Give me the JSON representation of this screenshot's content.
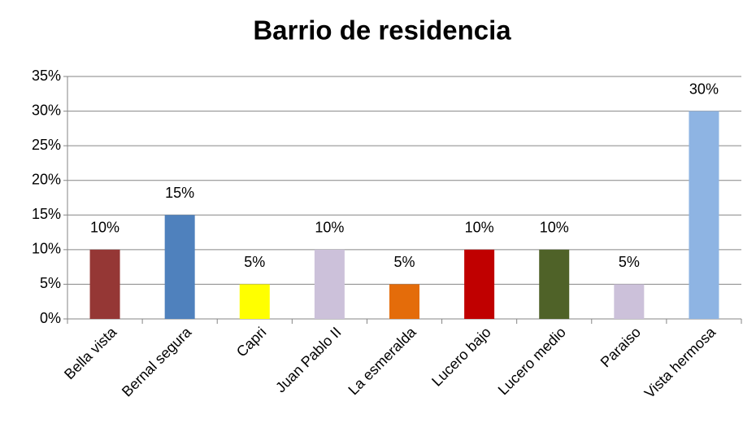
{
  "chart_data": {
    "type": "bar",
    "title": "Barrio de residencia",
    "categories": [
      "Bella vista",
      "Bernal segura",
      "Capri",
      "Juan Pablo II",
      "La esmeralda",
      "Lucero bajo",
      "Lucero medio",
      "Paraiso",
      "Vista hermosa"
    ],
    "values": [
      10,
      15,
      5,
      10,
      5,
      10,
      10,
      5,
      30
    ],
    "value_labels": [
      "10%",
      "15%",
      "5%",
      "10%",
      "5%",
      "10%",
      "10%",
      "5%",
      "30%"
    ],
    "colors": [
      "#953735",
      "#4f81bd",
      "#ffff00",
      "#ccc1da",
      "#e46c0a",
      "#c00000",
      "#4f6228",
      "#ccc1da",
      "#8eb4e3"
    ],
    "ylim": [
      0,
      35
    ],
    "yticks": [
      {
        "value": 0,
        "label": "0%"
      },
      {
        "value": 5,
        "label": "5%"
      },
      {
        "value": 10,
        "label": "10%"
      },
      {
        "value": 15,
        "label": "15%"
      },
      {
        "value": 20,
        "label": "20%"
      },
      {
        "value": 25,
        "label": "25%"
      },
      {
        "value": 30,
        "label": "30%"
      },
      {
        "value": 35,
        "label": "35%"
      }
    ],
    "grid": true
  }
}
